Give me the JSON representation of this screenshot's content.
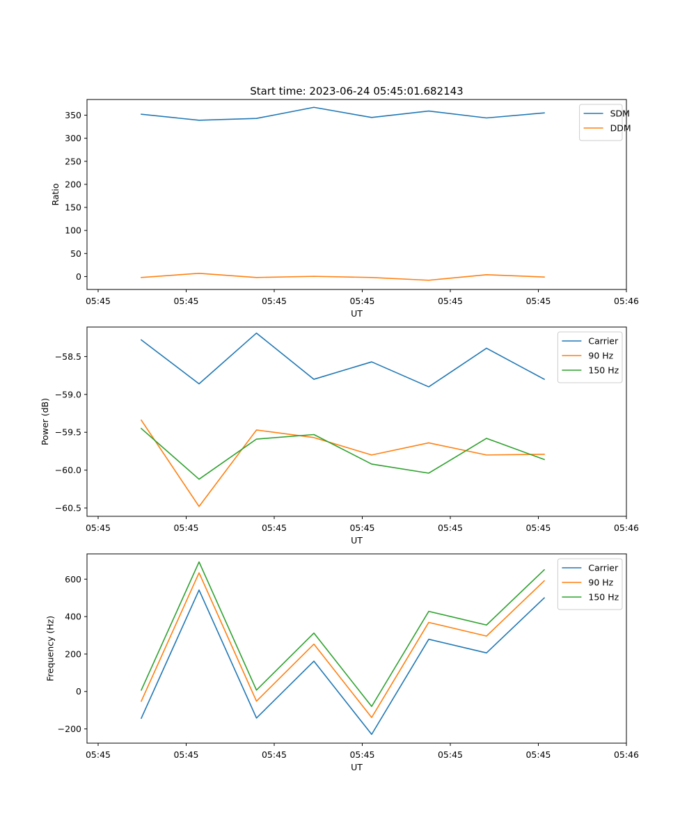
{
  "figure": {
    "title": "Start time: 2023-06-24 05:45:01.682143"
  },
  "chart_data": [
    {
      "type": "line",
      "xlabel": "UT",
      "ylabel": "Ratio",
      "xticks": [
        "05:45",
        "05:45",
        "05:45",
        "05:45",
        "05:45",
        "05:45",
        "05:46"
      ],
      "yticks": [
        0,
        50,
        100,
        150,
        200,
        250,
        300,
        350
      ],
      "ylim": [
        -28,
        384
      ],
      "legend_position": "upper right",
      "series": [
        {
          "name": "SDM",
          "color": "#1f77b4",
          "values": [
            352,
            339,
            343,
            367,
            345,
            359,
            344,
            355
          ]
        },
        {
          "name": "DDM",
          "color": "#ff7f0e",
          "values": [
            -2,
            7,
            -2,
            0.5,
            -2,
            -8,
            4,
            -1
          ]
        }
      ]
    },
    {
      "type": "line",
      "xlabel": "UT",
      "ylabel": "Power (dB)",
      "xticks": [
        "05:45",
        "05:45",
        "05:45",
        "05:45",
        "05:45",
        "05:45",
        "05:46"
      ],
      "yticks": [
        -60.5,
        -60.0,
        -59.5,
        -59.0,
        -58.5
      ],
      "ytick_labels": [
        "−60.5",
        "−60.0",
        "−59.5",
        "−59.0",
        "−58.5"
      ],
      "ylim": [
        -60.61,
        -58.11
      ],
      "legend_position": "upper right",
      "series": [
        {
          "name": "Carrier",
          "color": "#1f77b4",
          "values": [
            -58.28,
            -58.86,
            -58.19,
            -58.8,
            -58.57,
            -58.9,
            -58.39,
            -58.8
          ]
        },
        {
          "name": "90 Hz",
          "color": "#ff7f0e",
          "values": [
            -59.34,
            -60.48,
            -59.47,
            -59.57,
            -59.8,
            -59.64,
            -59.8,
            -59.79
          ]
        },
        {
          "name": "150 Hz",
          "color": "#2ca02c",
          "values": [
            -59.45,
            -60.12,
            -59.59,
            -59.53,
            -59.92,
            -60.04,
            -59.58,
            -59.86
          ]
        }
      ]
    },
    {
      "type": "line",
      "xlabel": "UT",
      "ylabel": "Frequency (Hz)",
      "xticks": [
        "05:45",
        "05:45",
        "05:45",
        "05:45",
        "05:45",
        "05:45",
        "05:46"
      ],
      "yticks": [
        -200,
        0,
        200,
        400,
        600
      ],
      "ytick_labels": [
        "−200",
        "0",
        "200",
        "400",
        "600"
      ],
      "ylim": [
        -276,
        735
      ],
      "legend_position": "upper right",
      "series": [
        {
          "name": "Carrier",
          "color": "#1f77b4",
          "values": [
            -143,
            542,
            -142,
            162,
            -229,
            279,
            206,
            500
          ]
        },
        {
          "name": "90 Hz",
          "color": "#ff7f0e",
          "values": [
            -52,
            634,
            -52,
            253,
            -139,
            369,
            296,
            591
          ]
        },
        {
          "name": "150 Hz",
          "color": "#2ca02c",
          "values": [
            7,
            692,
            7,
            312,
            -80,
            428,
            355,
            650
          ]
        }
      ]
    }
  ]
}
